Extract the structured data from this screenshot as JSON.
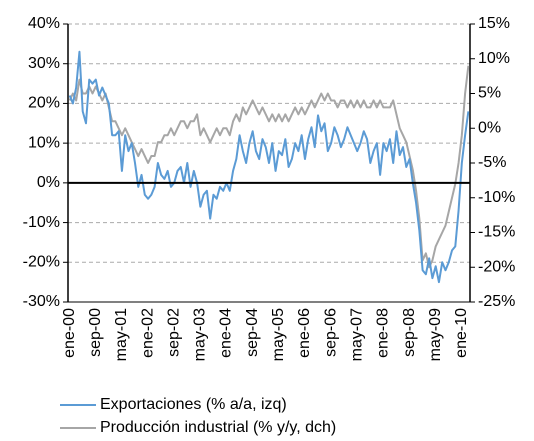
{
  "chart_data": {
    "type": "line",
    "categories": [
      "ene-00",
      null,
      null,
      null,
      null,
      null,
      null,
      null,
      "sep-00",
      null,
      null,
      null,
      null,
      null,
      null,
      null,
      "may-01",
      null,
      null,
      null,
      null,
      null,
      null,
      null,
      "ene-02",
      null,
      null,
      null,
      null,
      null,
      null,
      null,
      "sep-02",
      null,
      null,
      null,
      null,
      null,
      null,
      null,
      "may-03",
      null,
      null,
      null,
      null,
      null,
      null,
      null,
      "ene-04",
      null,
      null,
      null,
      null,
      null,
      null,
      null,
      "sep-04",
      null,
      null,
      null,
      null,
      null,
      null,
      null,
      "may-05",
      null,
      null,
      null,
      null,
      null,
      null,
      null,
      "ene-06",
      null,
      null,
      null,
      null,
      null,
      null,
      null,
      "sep-06",
      null,
      null,
      null,
      null,
      null,
      null,
      null,
      "may-07",
      null,
      null,
      null,
      null,
      null,
      null,
      null,
      "ene-08",
      null,
      null,
      null,
      null,
      null,
      null,
      null,
      "sep-08",
      null,
      null,
      null,
      null,
      null,
      null,
      null,
      "may-09",
      null,
      null,
      null,
      null,
      null,
      null,
      null,
      "ene-10",
      null,
      null
    ],
    "series": [
      {
        "name": "Exportaciones (% a/a, izq)",
        "color": "#5b9bd5",
        "axis": "y",
        "values": [
          22,
          20,
          24,
          33,
          18,
          15,
          26,
          25,
          26,
          22,
          24,
          22,
          20,
          12,
          12,
          13,
          3,
          12,
          8,
          10,
          5,
          -1,
          2,
          -3,
          -4,
          -3,
          -1,
          5,
          2,
          1,
          3,
          -1,
          0,
          3,
          4,
          0,
          5,
          -1,
          3,
          0,
          -6,
          -3,
          -2,
          -9,
          -3,
          -4,
          -1,
          -2,
          0,
          -2,
          3,
          6,
          12,
          8,
          5,
          10,
          13,
          8,
          6,
          11,
          9,
          5,
          10,
          3,
          8,
          7,
          11,
          4,
          6,
          10,
          8,
          12,
          6,
          11,
          14,
          9,
          17,
          13,
          15,
          8,
          10,
          14,
          12,
          9,
          11,
          14,
          12,
          10,
          8,
          10,
          13,
          11,
          5,
          8,
          10,
          2,
          10,
          8,
          11,
          5,
          13,
          7,
          9,
          4,
          6,
          0,
          -5,
          -12,
          -22,
          -23,
          -19,
          -24,
          -21,
          -25,
          -20,
          -22,
          -20,
          -17,
          -16,
          -7,
          5,
          12,
          18
        ]
      },
      {
        "name": "Producción industrial (% y/y, dch)",
        "color": "#a6a6a6",
        "axis": "y2",
        "values": [
          4,
          5,
          4,
          7,
          5,
          5,
          6,
          5,
          6,
          5,
          4,
          5,
          3,
          1,
          1,
          0,
          -1,
          0,
          -1,
          -2,
          -3,
          -4,
          -3,
          -4,
          -5,
          -4,
          -4,
          -2,
          -2,
          -1,
          -1,
          0,
          -1,
          0,
          1,
          1,
          0,
          1,
          1,
          2,
          -1,
          0,
          -1,
          -2,
          -1,
          0,
          -1,
          0,
          0,
          -1,
          1,
          2,
          1,
          3,
          2,
          3,
          4,
          3,
          2,
          3,
          2,
          1,
          2,
          1,
          2,
          1,
          2,
          1,
          2,
          3,
          2,
          3,
          2,
          3,
          4,
          3,
          4,
          5,
          4,
          5,
          4,
          4,
          3,
          4,
          4,
          3,
          4,
          3,
          4,
          3,
          4,
          3,
          3,
          4,
          3,
          4,
          3,
          3,
          3,
          4,
          2,
          0,
          -1,
          -2,
          -4,
          -6,
          -9,
          -13,
          -19,
          -18,
          -20,
          -19,
          -17,
          -16,
          -15,
          -14,
          -12,
          -10,
          -8,
          -5,
          -1,
          5,
          9
        ]
      }
    ],
    "ylim": [
      -30,
      40
    ],
    "yticks": [
      {
        "value": -30,
        "label": "-30%"
      },
      {
        "value": -20,
        "label": "-20%"
      },
      {
        "value": -10,
        "label": "-10%"
      },
      {
        "value": 0,
        "label": "0%"
      },
      {
        "value": 10,
        "label": "10%"
      },
      {
        "value": 20,
        "label": "20%"
      },
      {
        "value": 30,
        "label": "30%"
      },
      {
        "value": 40,
        "label": "40%"
      }
    ],
    "y2lim": [
      -25,
      15
    ],
    "y2ticks": [
      {
        "value": -25,
        "label": "-25%"
      },
      {
        "value": -20,
        "label": "-20%"
      },
      {
        "value": -15,
        "label": "-15%"
      },
      {
        "value": -10,
        "label": "-10%"
      },
      {
        "value": -5,
        "label": "-5%"
      },
      {
        "value": 0,
        "label": "0%"
      },
      {
        "value": 5,
        "label": "5%"
      },
      {
        "value": 10,
        "label": "10%"
      },
      {
        "value": 15,
        "label": "15%"
      }
    ],
    "grid": true
  }
}
